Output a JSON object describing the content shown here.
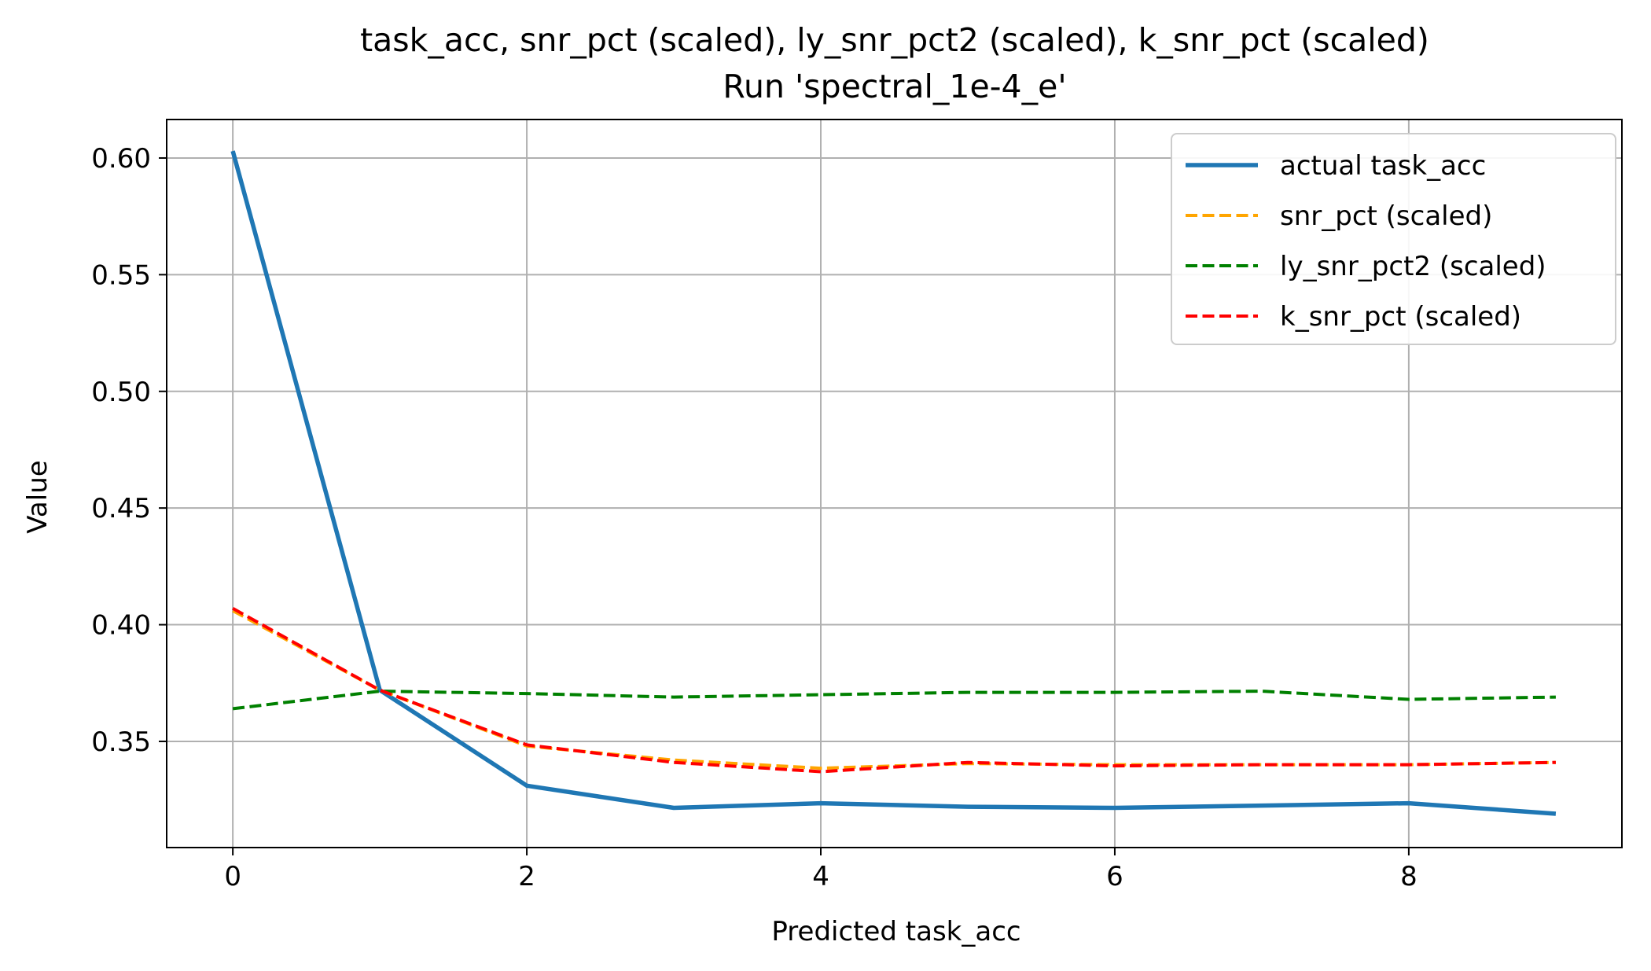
{
  "chart_data": {
    "type": "line",
    "title": "task_acc, snr_pct (scaled), ly_snr_pct2 (scaled), k_snr_pct (scaled)",
    "subtitle": "Run 'spectral_1e-4_e'",
    "xlabel": "Predicted task_acc",
    "ylabel": "Value",
    "x": [
      0,
      1,
      2,
      3,
      4,
      5,
      6,
      7,
      8,
      9
    ],
    "xlim": [
      -0.45,
      9.45
    ],
    "ylim": [
      0.3045,
      0.6165
    ],
    "xticks": [
      0,
      2,
      4,
      6,
      8
    ],
    "xtick_labels": [
      "0",
      "2",
      "4",
      "6",
      "8"
    ],
    "yticks": [
      0.35,
      0.4,
      0.45,
      0.5,
      0.55,
      0.6
    ],
    "ytick_labels": [
      "0.35",
      "0.40",
      "0.45",
      "0.50",
      "0.55",
      "0.60"
    ],
    "grid": true,
    "legend_position": "top-right",
    "series": [
      {
        "name": "actual task_acc",
        "color": "#1f77b4",
        "style": "solid",
        "values": [
          0.603,
          0.372,
          0.331,
          0.3215,
          0.3235,
          0.322,
          0.3215,
          0.3225,
          0.3235,
          0.319
        ]
      },
      {
        "name": "snr_pct (scaled)",
        "color": "#ffa500",
        "style": "dashed",
        "values": [
          0.406,
          0.372,
          0.348,
          0.342,
          0.3385,
          0.3405,
          0.34,
          0.34,
          0.34,
          0.341
        ]
      },
      {
        "name": "ly_snr_pct2 (scaled)",
        "color": "#008000",
        "style": "dashed",
        "values": [
          0.364,
          0.3715,
          0.3705,
          0.369,
          0.37,
          0.371,
          0.371,
          0.3715,
          0.368,
          0.369
        ]
      },
      {
        "name": "k_snr_pct (scaled)",
        "color": "#ff0000",
        "style": "dashed",
        "values": [
          0.407,
          0.372,
          0.3485,
          0.341,
          0.337,
          0.341,
          0.3395,
          0.34,
          0.34,
          0.341
        ]
      }
    ]
  }
}
